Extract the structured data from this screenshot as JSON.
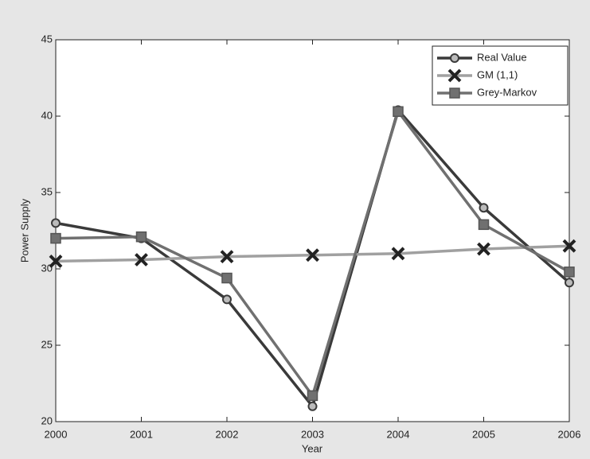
{
  "chart_data": {
    "type": "line",
    "x": [
      2000,
      2001,
      2002,
      2003,
      2004,
      2005,
      2006
    ],
    "xlim": [
      2000,
      2006
    ],
    "xticks": [
      2000,
      2001,
      2002,
      2003,
      2004,
      2005,
      2006
    ],
    "ylim": [
      20,
      45
    ],
    "yticks": [
      20,
      25,
      30,
      35,
      40,
      45
    ],
    "xlabel": "Year",
    "ylabel": "Power Supply",
    "legend": "upper right",
    "series": [
      {
        "name": "Real Value",
        "color": "#3a3a3a",
        "marker": "circle",
        "values": [
          33,
          32,
          28,
          21,
          40.4,
          34,
          29.1
        ]
      },
      {
        "name": "GM (1,1)",
        "color": "#a0a0a0",
        "marker": "x",
        "values": [
          30.5,
          30.6,
          30.8,
          30.9,
          31,
          31.3,
          31.5
        ]
      },
      {
        "name": "Grey-Markov",
        "color": "#707070",
        "marker": "square",
        "values": [
          32,
          32.1,
          29.4,
          21.7,
          40.3,
          32.9,
          29.8
        ]
      }
    ]
  }
}
